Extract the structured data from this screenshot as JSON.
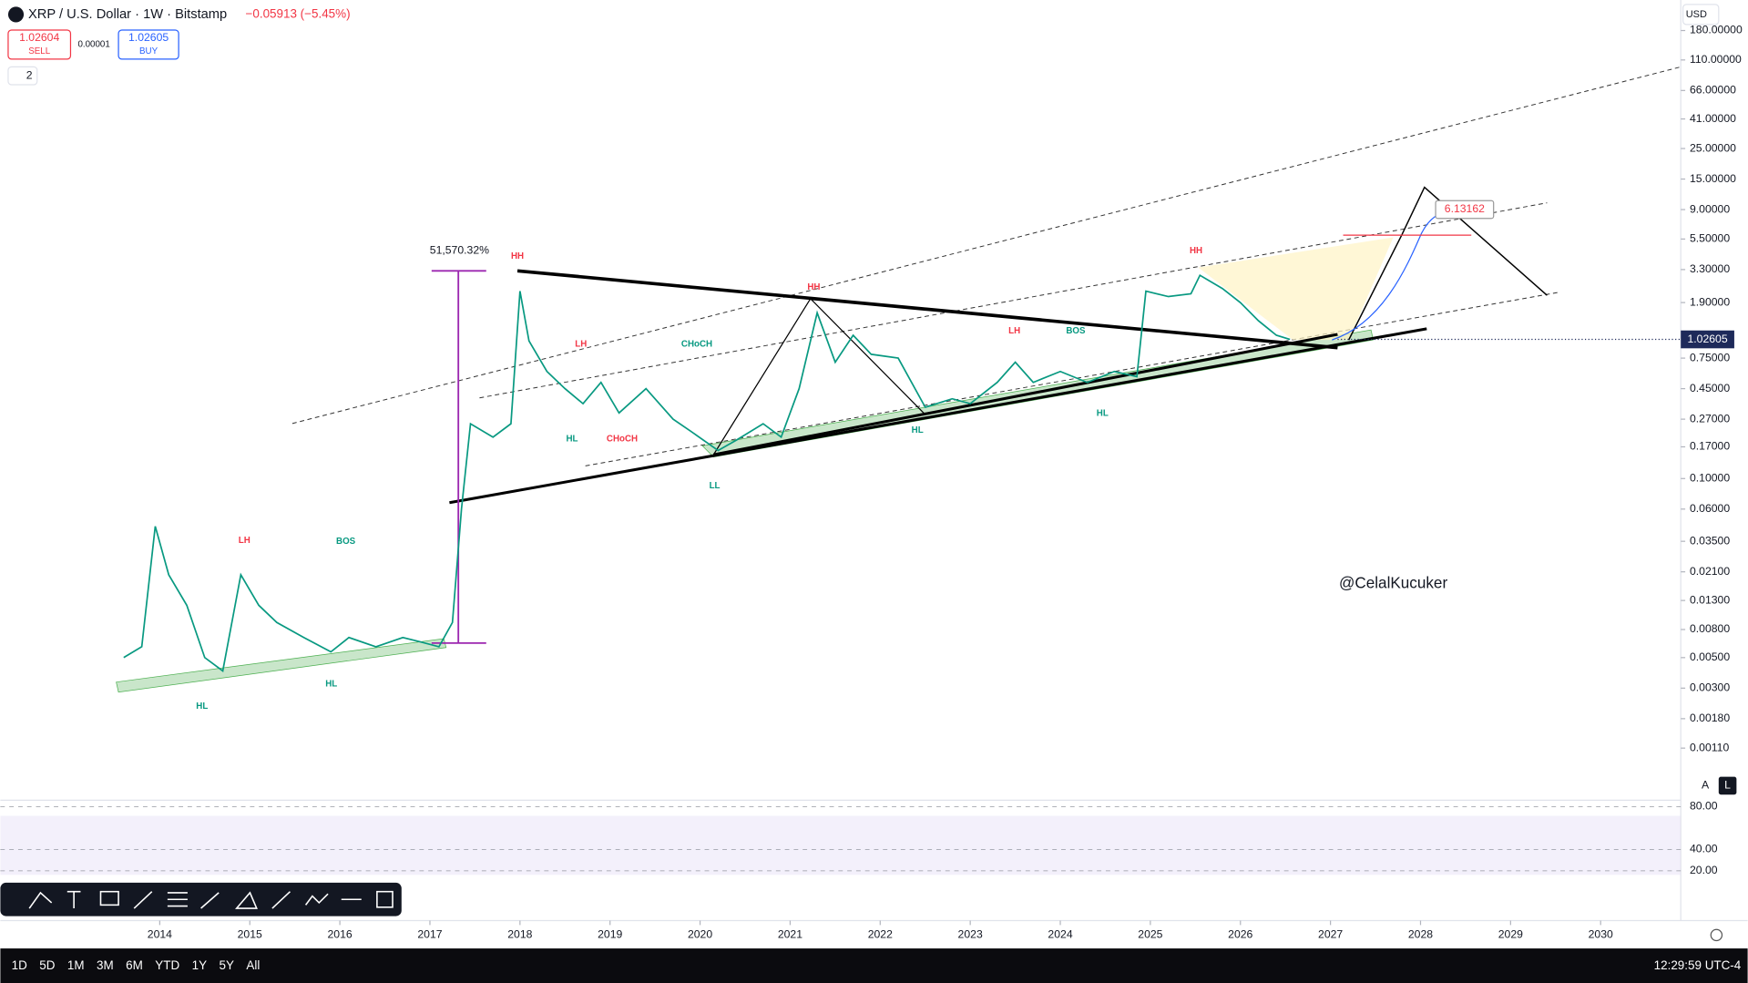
{
  "header": {
    "symbol": "XRP / U.S. Dollar · 1W · Bitstamp",
    "change": "−0.05913 (−5.45%)",
    "sell_price": "1.02604",
    "sell_label": "SELL",
    "spread": "0.00001",
    "buy_price": "1.02605",
    "buy_label": "BUY",
    "indicator_count": "2",
    "currency": "USD"
  },
  "chart_data": {
    "type": "line",
    "log_scale": true,
    "color": "#089981",
    "x": [
      2013.6,
      2013.8,
      2013.95,
      2014.1,
      2014.3,
      2014.5,
      2014.7,
      2014.9,
      2015.1,
      2015.3,
      2015.6,
      2015.9,
      2016.1,
      2016.4,
      2016.7,
      2016.9,
      2017.1,
      2017.25,
      2017.35,
      2017.45,
      2017.7,
      2017.9,
      2018.0,
      2018.1,
      2018.3,
      2018.5,
      2018.7,
      2018.9,
      2019.1,
      2019.4,
      2019.7,
      2019.9,
      2020.2,
      2020.4,
      2020.7,
      2020.9,
      2021.1,
      2021.3,
      2021.5,
      2021.7,
      2021.9,
      2022.2,
      2022.5,
      2022.8,
      2023.0,
      2023.3,
      2023.5,
      2023.7,
      2024.0,
      2024.3,
      2024.6,
      2024.85,
      2024.95,
      2025.2,
      2025.45,
      2025.55,
      2025.8,
      2026.0,
      2026.2,
      2026.4,
      2026.55
    ],
    "values": [
      0.005,
      0.006,
      0.045,
      0.02,
      0.012,
      0.005,
      0.004,
      0.02,
      0.012,
      0.009,
      0.007,
      0.0055,
      0.007,
      0.006,
      0.007,
      0.0065,
      0.006,
      0.009,
      0.06,
      0.25,
      0.2,
      0.25,
      2.3,
      1.0,
      0.6,
      0.45,
      0.35,
      0.5,
      0.3,
      0.45,
      0.27,
      0.22,
      0.16,
      0.19,
      0.25,
      0.2,
      0.45,
      1.6,
      0.7,
      1.1,
      0.8,
      0.75,
      0.33,
      0.38,
      0.35,
      0.5,
      0.7,
      0.5,
      0.6,
      0.5,
      0.6,
      0.55,
      2.3,
      2.1,
      2.2,
      3.0,
      2.4,
      1.9,
      1.4,
      1.1,
      1.026
    ],
    "xlim": [
      2012.23,
      2030.89
    ],
    "xticks": [
      2014,
      2015,
      2016,
      2017,
      2018,
      2019,
      2020,
      2021,
      2022,
      2023,
      2024,
      2025,
      2026,
      2027,
      2028,
      2029,
      2030
    ],
    "ylim": [
      0.00046,
      300
    ],
    "yticks": [
      {
        "value": 180,
        "label": "180.00000"
      },
      {
        "value": 110,
        "label": "110.00000"
      },
      {
        "value": 66,
        "label": "66.00000"
      },
      {
        "value": 41,
        "label": "41.00000"
      },
      {
        "value": 25,
        "label": "25.00000"
      },
      {
        "value": 15,
        "label": "15.00000"
      },
      {
        "value": 9,
        "label": "9.00000"
      },
      {
        "value": 5.5,
        "label": "5.50000"
      },
      {
        "value": 3.3,
        "label": "3.30000"
      },
      {
        "value": 1.9,
        "label": "1.90000"
      },
      {
        "value": 0.75,
        "label": "0.75000"
      },
      {
        "value": 0.45,
        "label": "0.45000"
      },
      {
        "value": 0.27,
        "label": "0.27000"
      },
      {
        "value": 0.17,
        "label": "0.17000"
      },
      {
        "value": 0.1,
        "label": "0.10000"
      },
      {
        "value": 0.06,
        "label": "0.06000"
      },
      {
        "value": 0.035,
        "label": "0.03500"
      },
      {
        "value": 0.021,
        "label": "0.02100"
      },
      {
        "value": 0.013,
        "label": "0.01300"
      },
      {
        "value": 0.008,
        "label": "0.00800"
      },
      {
        "value": 0.005,
        "label": "0.00500"
      },
      {
        "value": 0.003,
        "label": "0.00300"
      },
      {
        "value": 0.0018,
        "label": "0.00180"
      },
      {
        "value": 0.0011,
        "label": "0.00110"
      }
    ],
    "last_price": 1.02605,
    "last_price_color": "#1e2a5a",
    "measure_label": "51,570.32%",
    "target_label": "6.13162",
    "watermark": "@CelalKucuker",
    "annotations": [
      {
        "text": "HH",
        "color": "#f23645"
      },
      {
        "text": "HH",
        "color": "#f23645"
      },
      {
        "text": "HH",
        "color": "#f23645"
      },
      {
        "text": "LH",
        "color": "#f23645"
      },
      {
        "text": "LH",
        "color": "#f23645"
      },
      {
        "text": "LH",
        "color": "#f23645"
      },
      {
        "text": "BOS",
        "color": "#089981"
      },
      {
        "text": "BOS",
        "color": "#089981"
      },
      {
        "text": "CHoCH",
        "color": "#089981"
      },
      {
        "text": "CHoCH",
        "color": "#f23645"
      },
      {
        "text": "HL",
        "color": "#089981"
      },
      {
        "text": "HL",
        "color": "#089981"
      },
      {
        "text": "HL",
        "color": "#089981"
      },
      {
        "text": "HL",
        "color": "#089981"
      },
      {
        "text": "HL",
        "color": "#089981"
      },
      {
        "text": "LL",
        "color": "#089981"
      }
    ]
  },
  "rsi": {
    "ylim": [
      11,
      86
    ],
    "yticks": [
      {
        "value": 80,
        "label": "80.00"
      },
      {
        "value": 40,
        "label": "40.00"
      },
      {
        "value": 20,
        "label": "20.00"
      }
    ]
  },
  "scale_buttons": [
    "A",
    "L"
  ],
  "bottom_bar": {
    "ranges": [
      "1D",
      "5D",
      "1M",
      "3M",
      "6M",
      "YTD",
      "1Y",
      "5Y",
      "All"
    ],
    "clock": "12:29:59 UTC-4"
  }
}
